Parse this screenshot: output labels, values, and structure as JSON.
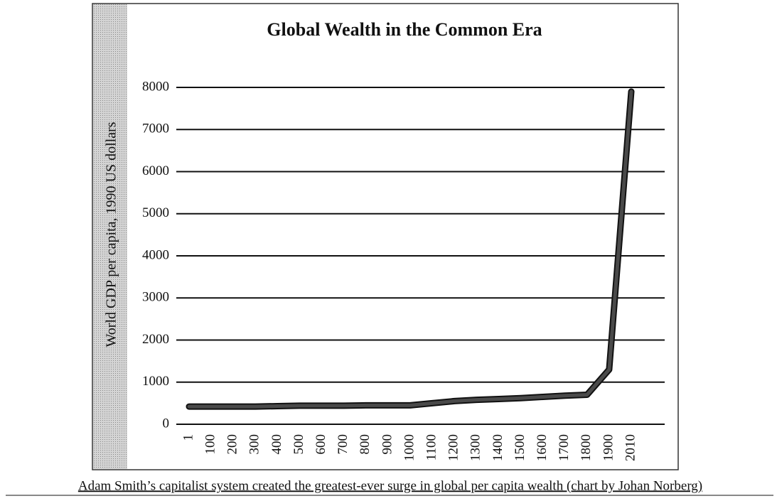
{
  "chart_data": {
    "type": "line",
    "title": "Global Wealth in the Common Era",
    "y_label": "World GDP per capita, 1990 US dollars",
    "caption": "Adam Smith’s capitalist system created the greatest-ever surge in global per capita wealth (chart by Johan Norberg)",
    "categories": [
      "1",
      "100",
      "200",
      "300",
      "400",
      "500",
      "600",
      "700",
      "800",
      "900",
      "1000",
      "1100",
      "1200",
      "1300",
      "1400",
      "1500",
      "1600",
      "1700",
      "1800",
      "1900",
      "2010"
    ],
    "series": [
      {
        "color": "#4a4a4a",
        "values": [
          420,
          420,
          420,
          420,
          430,
          440,
          440,
          440,
          450,
          450,
          450,
          500,
          550,
          580,
          600,
          620,
          650,
          680,
          700,
          1300,
          7900
        ]
      }
    ],
    "ylim": [
      0,
      8000
    ],
    "yticks": [
      0,
      1000,
      2000,
      3000,
      4000,
      5000,
      6000,
      7000,
      8000
    ],
    "grid": true
  }
}
